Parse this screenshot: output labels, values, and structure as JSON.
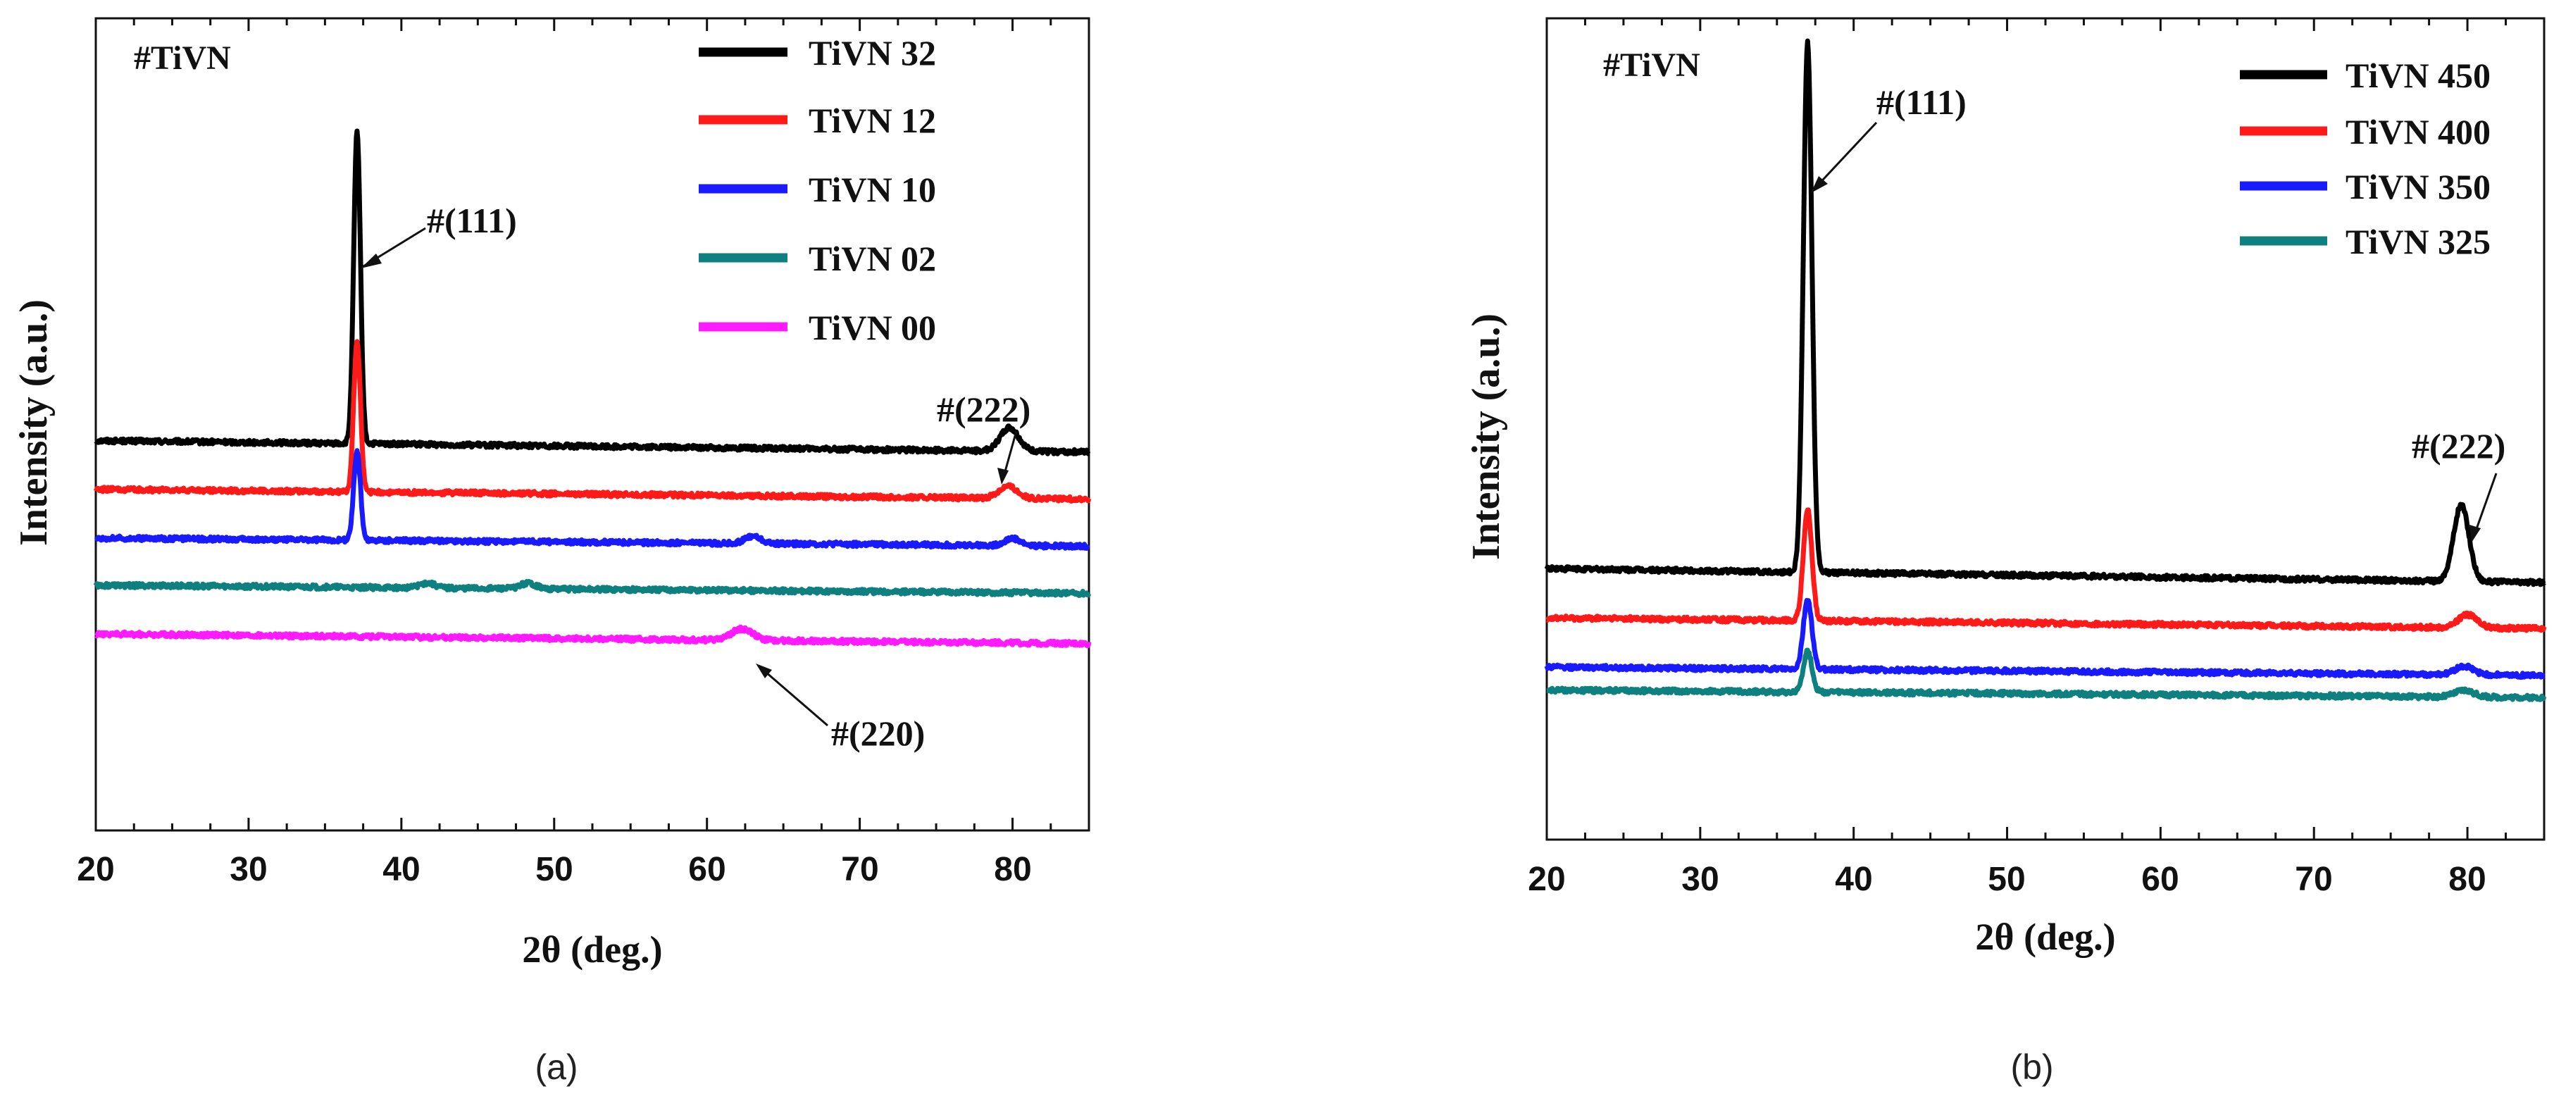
{
  "chart_data": [
    {
      "panel_label": "(a)",
      "type": "line",
      "sample_label": "#TiVN",
      "xlabel": "2θ (deg.)",
      "ylabel": "Intensity (a.u.)",
      "xlim": [
        20,
        85
      ],
      "xticks": [
        "20",
        "30",
        "40",
        "50",
        "60",
        "70",
        "80"
      ],
      "ylim": [
        0,
        100
      ],
      "legend_position": "top-right",
      "series": [
        {
          "name": "TiVN 32",
          "color": "#000000",
          "baseline": 48.0,
          "end_baseline": 46.6,
          "peaks": [
            {
              "x": 37.1,
              "h": 38.5,
              "w": 0.22
            },
            {
              "x": 79.8,
              "h": 2.9,
              "w": 0.6
            }
          ]
        },
        {
          "name": "TiVN 12",
          "color": "#ff1a1a",
          "baseline": 42.0,
          "end_baseline": 40.8,
          "peaks": [
            {
              "x": 37.1,
              "h": 18.5,
              "w": 0.22
            },
            {
              "x": 79.7,
              "h": 1.5,
              "w": 0.6
            }
          ]
        },
        {
          "name": "TiVN 10",
          "color": "#1a1aff",
          "baseline": 36.0,
          "end_baseline": 35.0,
          "peaks": [
            {
              "x": 37.1,
              "h": 11.0,
              "w": 0.22
            },
            {
              "x": 63.0,
              "h": 0.9,
              "w": 0.5
            },
            {
              "x": 80.0,
              "h": 0.9,
              "w": 0.5
            }
          ]
        },
        {
          "name": "TiVN 02",
          "color": "#0f8080",
          "baseline": 30.2,
          "end_baseline": 29.2,
          "peaks": [
            {
              "x": 41.7,
              "h": 0.6,
              "w": 0.5
            },
            {
              "x": 48.3,
              "h": 0.7,
              "w": 0.5
            }
          ]
        },
        {
          "name": "TiVN 00",
          "color": "#ff1aff",
          "baseline": 24.2,
          "end_baseline": 23.0,
          "peaks": [
            {
              "x": 62.3,
              "h": 1.4,
              "w": 0.7
            }
          ]
        }
      ],
      "annotations": [
        "#(111)",
        "#(222)",
        "#(220)"
      ]
    },
    {
      "panel_label": "(b)",
      "type": "line",
      "sample_label": "#TiVN",
      "xlabel": "2θ (deg.)",
      "ylabel": "Intensity (a.u.)",
      "xlim": [
        20,
        85
      ],
      "xticks": [
        "20",
        "30",
        "40",
        "50",
        "60",
        "70",
        "80"
      ],
      "ylim": [
        0,
        100
      ],
      "legend_position": "top-right",
      "series": [
        {
          "name": "TiVN 450",
          "color": "#000000",
          "baseline": 33.0,
          "end_baseline": 31.3,
          "peaks": [
            {
              "x": 37.0,
              "h": 64.5,
              "w": 0.28
            },
            {
              "x": 79.6,
              "h": 9.3,
              "w": 0.5
            }
          ]
        },
        {
          "name": "TiVN 400",
          "color": "#ff1a1a",
          "baseline": 27.0,
          "end_baseline": 25.7,
          "peaks": [
            {
              "x": 37.0,
              "h": 13.5,
              "w": 0.28
            },
            {
              "x": 80.0,
              "h": 1.6,
              "w": 0.6
            }
          ]
        },
        {
          "name": "TiVN 350",
          "color": "#1a1aff",
          "baseline": 21.0,
          "end_baseline": 20.0,
          "peaks": [
            {
              "x": 37.0,
              "h": 8.5,
              "w": 0.28
            },
            {
              "x": 79.8,
              "h": 1.0,
              "w": 0.6
            }
          ]
        },
        {
          "name": "TiVN 325",
          "color": "#0f8080",
          "baseline": 18.2,
          "end_baseline": 17.3,
          "peaks": [
            {
              "x": 37.0,
              "h": 5.0,
              "w": 0.28
            },
            {
              "x": 79.8,
              "h": 0.8,
              "w": 0.6
            }
          ]
        }
      ],
      "annotations": [
        "#(111)",
        "#(222)"
      ]
    }
  ]
}
